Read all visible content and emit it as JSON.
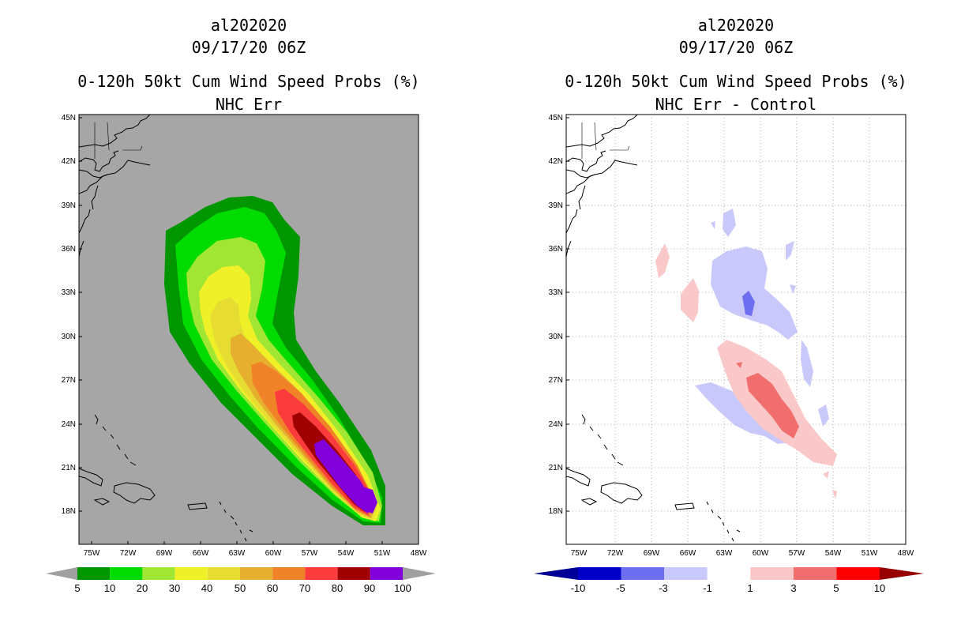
{
  "panels": [
    {
      "storm_id": "al202020",
      "datetime": "09/17/20 06Z",
      "title": "0-120h 50kt Cum Wind Speed Probs (%)",
      "subtitle": "NHC Err",
      "lat_labels": [
        "45N",
        "42N",
        "39N",
        "36N",
        "33N",
        "30N",
        "27N",
        "24N",
        "21N",
        "18N"
      ],
      "lon_labels": [
        "75W",
        "72W",
        "69W",
        "66W",
        "63W",
        "60W",
        "57W",
        "54W",
        "51W",
        "48W"
      ],
      "colorbar_labels": [
        "5",
        "10",
        "20",
        "30",
        "40",
        "50",
        "60",
        "70",
        "80",
        "90",
        "100"
      ],
      "colorbar_colors": [
        "#009600",
        "#00dc00",
        "#a0e632",
        "#f0f028",
        "#e6dc32",
        "#e6af2d",
        "#f08228",
        "#fa3c3c",
        "#a00000",
        "#8200dc"
      ],
      "under_color": "#a0a0a0",
      "over_color": "#a0a0a0",
      "background": "#a6a6a6"
    },
    {
      "storm_id": "al202020",
      "datetime": "09/17/20 06Z",
      "title": "0-120h 50kt Cum Wind Speed Probs (%)",
      "subtitle": "NHC Err - Control",
      "lat_labels": [
        "45N",
        "42N",
        "39N",
        "36N",
        "33N",
        "30N",
        "27N",
        "24N",
        "21N",
        "18N"
      ],
      "lon_labels": [
        "75W",
        "72W",
        "69W",
        "66W",
        "63W",
        "60W",
        "57W",
        "54W",
        "51W",
        "48W"
      ],
      "colorbar_labels": [
        "-10",
        "-5",
        "-3",
        "-1",
        "1",
        "3",
        "5",
        "10"
      ],
      "colorbar_colors": [
        "#0000c8",
        "#6e6ef0",
        "#c8c8fa",
        "#ffffff",
        "#fac8c8",
        "#f06e6e",
        "#ff0000"
      ],
      "under_color": "#000096",
      "over_color": "#960000",
      "background": "#ffffff"
    }
  ]
}
